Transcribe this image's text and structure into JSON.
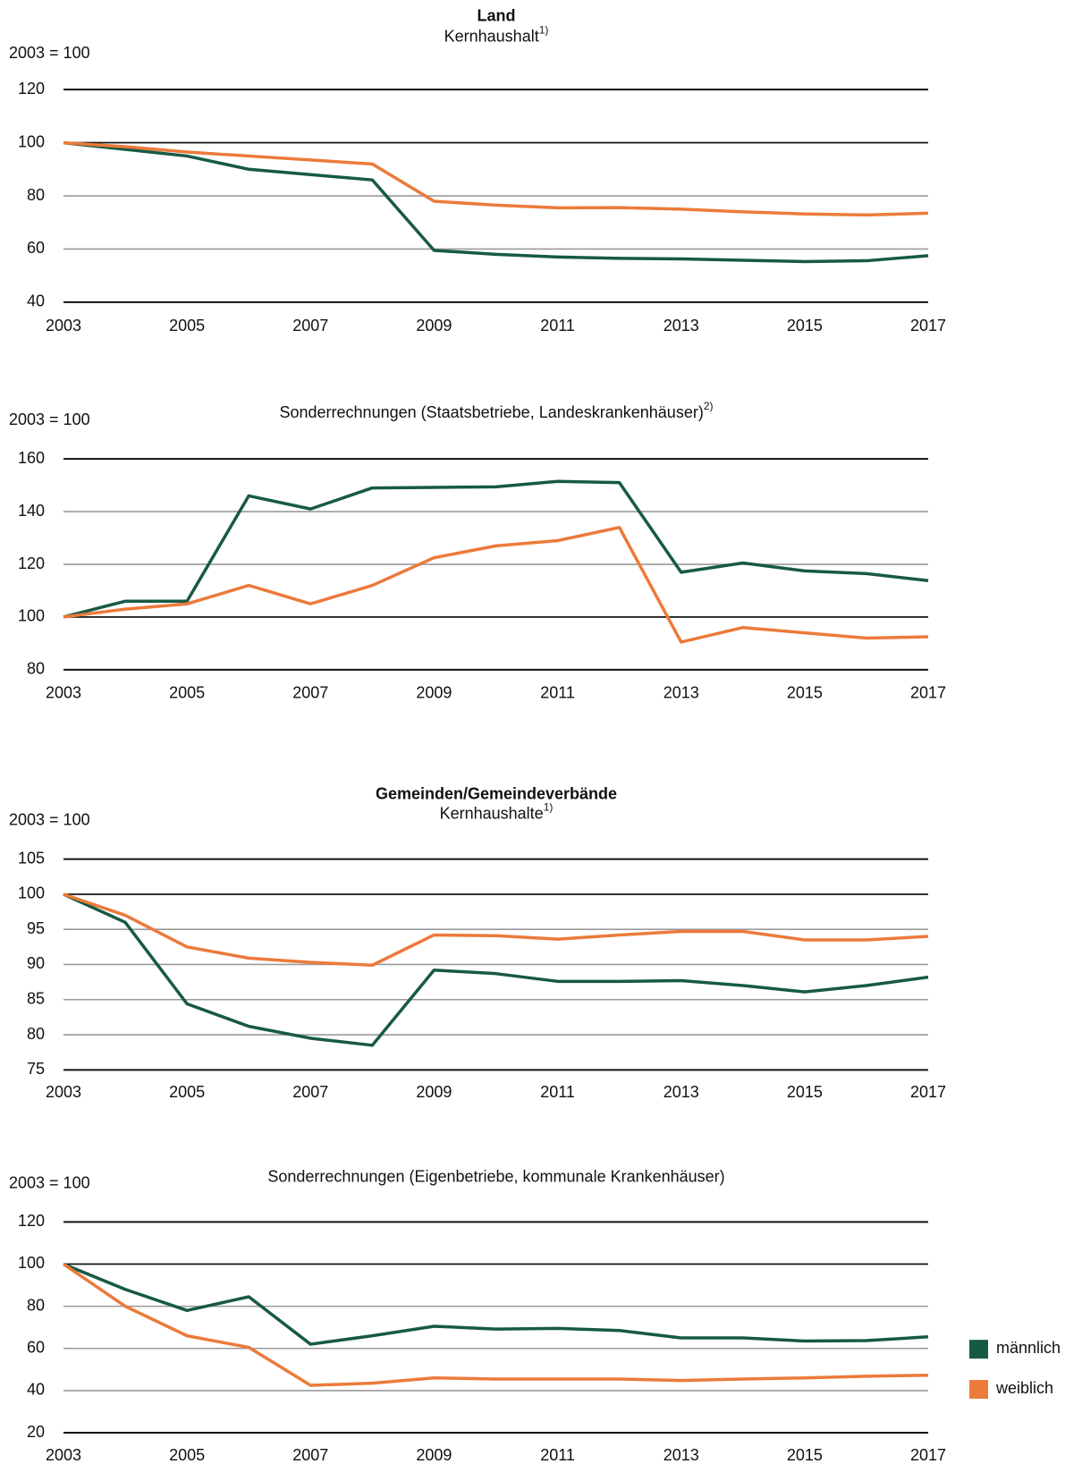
{
  "chart_data": [
    {
      "type": "line",
      "title": "Land",
      "subtitle": "Kernhaushalt",
      "subtitle_note": "1)",
      "y_label": "2003 = 100",
      "x": [
        2003,
        2004,
        2005,
        2006,
        2007,
        2008,
        2009,
        2010,
        2011,
        2012,
        2013,
        2014,
        2015,
        2016,
        2017
      ],
      "xlim": [
        2003,
        2017
      ],
      "xticks": [
        2003,
        2005,
        2007,
        2009,
        2011,
        2013,
        2015,
        2017
      ],
      "ylim": [
        40,
        120
      ],
      "yticks": [
        40,
        60,
        80,
        100,
        120
      ],
      "reference_line": 100,
      "grid": true,
      "series": [
        {
          "name": "männlich",
          "color": "#175a44",
          "values": [
            100,
            97.5,
            95,
            90,
            88,
            86,
            59.5,
            58,
            57,
            56.5,
            56.3,
            55.8,
            55.3,
            55.6,
            57.5
          ]
        },
        {
          "name": "weiblich",
          "color": "#ec7a3a",
          "values": [
            100,
            98.5,
            96.5,
            95,
            93.5,
            92,
            78,
            76.5,
            75.5,
            75.6,
            75,
            74,
            73.2,
            72.8,
            73.5
          ]
        }
      ]
    },
    {
      "type": "line",
      "subtitle": "Sonderrechnungen (Staatsbetriebe, Landeskrankenhäuser)",
      "subtitle_note": "2)",
      "y_label": "2003 = 100",
      "x": [
        2003,
        2004,
        2005,
        2006,
        2007,
        2008,
        2009,
        2010,
        2011,
        2012,
        2013,
        2014,
        2015,
        2016,
        2017
      ],
      "xlim": [
        2003,
        2017
      ],
      "xticks": [
        2003,
        2005,
        2007,
        2009,
        2011,
        2013,
        2015,
        2017
      ],
      "ylim": [
        80,
        160
      ],
      "yticks": [
        80,
        100,
        120,
        140,
        160
      ],
      "reference_line": 100,
      "grid": true,
      "series": [
        {
          "name": "männlich",
          "color": "#175a44",
          "values": [
            100,
            106,
            106,
            146,
            141,
            149,
            149.2,
            149.4,
            151.5,
            151,
            117,
            120.5,
            117.5,
            116.5,
            113.8
          ]
        },
        {
          "name": "weiblich",
          "color": "#ec7a3a",
          "values": [
            100,
            103,
            105,
            112,
            105,
            112,
            122.5,
            127,
            129,
            134,
            90.5,
            96,
            94,
            92,
            92.5
          ]
        }
      ]
    },
    {
      "type": "line",
      "title": "Gemeinden/Gemeindeverbände",
      "subtitle": "Kernhaushalte",
      "subtitle_note": "1)",
      "y_label": "2003 = 100",
      "x": [
        2003,
        2004,
        2005,
        2006,
        2007,
        2008,
        2009,
        2010,
        2011,
        2012,
        2013,
        2014,
        2015,
        2016,
        2017
      ],
      "xlim": [
        2003,
        2017
      ],
      "xticks": [
        2003,
        2005,
        2007,
        2009,
        2011,
        2013,
        2015,
        2017
      ],
      "ylim": [
        75,
        105
      ],
      "yticks": [
        75,
        80,
        85,
        90,
        95,
        100,
        105
      ],
      "reference_line": 100,
      "grid": true,
      "series": [
        {
          "name": "männlich",
          "color": "#175a44",
          "values": [
            100,
            96,
            84.4,
            81.2,
            79.5,
            78.5,
            89.2,
            88.7,
            87.6,
            87.6,
            87.7,
            87,
            86.1,
            87,
            88.2
          ]
        },
        {
          "name": "weiblich",
          "color": "#ec7a3a",
          "values": [
            100,
            97,
            92.5,
            90.9,
            90.3,
            89.9,
            94.2,
            94.1,
            93.6,
            94.2,
            94.7,
            94.7,
            93.5,
            93.5,
            94
          ]
        }
      ]
    },
    {
      "type": "line",
      "subtitle": "Sonderrechnungen (Eigenbetriebe, kommunale Krankenhäuser)",
      "y_label": "2003 = 100",
      "x": [
        2003,
        2004,
        2005,
        2006,
        2007,
        2008,
        2009,
        2010,
        2011,
        2012,
        2013,
        2014,
        2015,
        2016,
        2017
      ],
      "xlim": [
        2003,
        2017
      ],
      "xticks": [
        2003,
        2005,
        2007,
        2009,
        2011,
        2013,
        2015,
        2017
      ],
      "ylim": [
        20,
        120
      ],
      "yticks": [
        20,
        40,
        60,
        80,
        100,
        120
      ],
      "reference_line": 100,
      "grid": true,
      "legend": "lower right",
      "series": [
        {
          "name": "männlich",
          "color": "#175a44",
          "values": [
            100,
            88,
            78,
            84.5,
            62,
            66,
            70.5,
            69.2,
            69.5,
            68.5,
            65,
            65,
            63.5,
            63.7,
            65.5
          ]
        },
        {
          "name": "weiblich",
          "color": "#ec7a3a",
          "values": [
            100,
            80,
            66,
            60.5,
            42.5,
            43.5,
            46,
            45.5,
            45.5,
            45.5,
            44.8,
            45.5,
            46,
            46.8,
            47.3
          ]
        }
      ]
    }
  ]
}
